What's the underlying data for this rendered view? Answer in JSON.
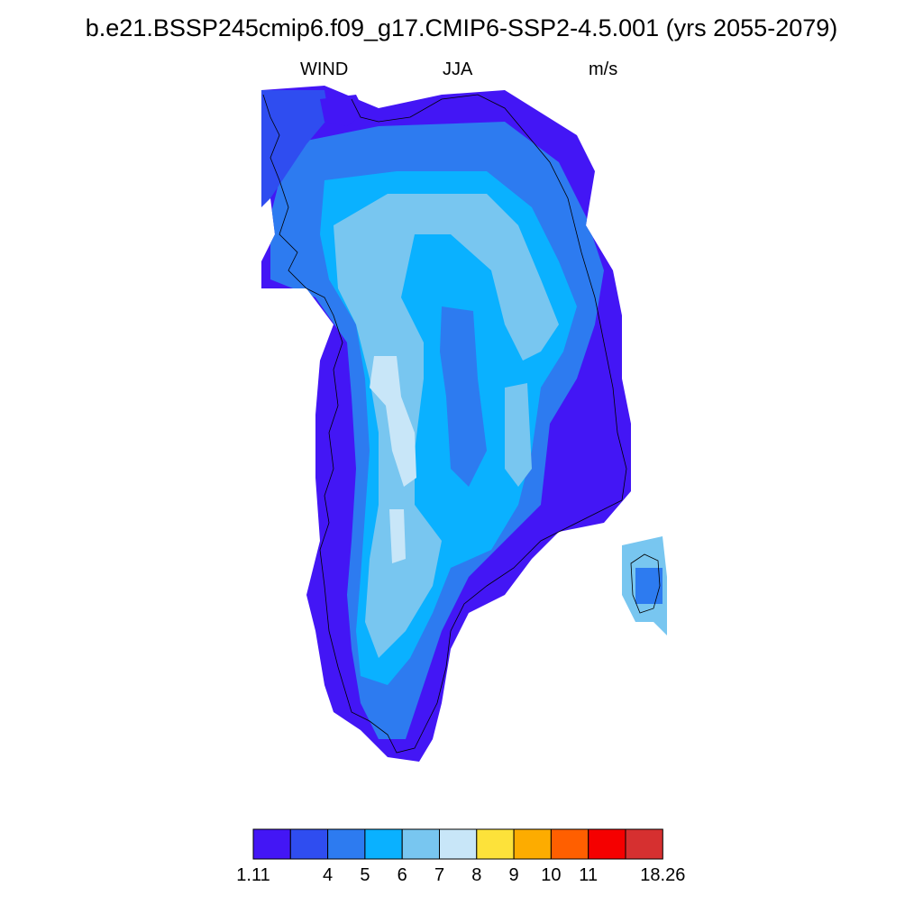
{
  "title": "b.e21.BSSP245cmip6.f09_g17.CMIP6-SSP2-4.5.001 (yrs 2055-2079)",
  "subtitle_left": "WIND",
  "subtitle_center": "JJA",
  "subtitle_right": "m/s",
  "colorbar": {
    "colors": [
      "#4316f5",
      "#2f4df0",
      "#2d7bf0",
      "#0ab1ff",
      "#78c6f0",
      "#c8e6f8",
      "#fde23a",
      "#fdac00",
      "#ff5f00",
      "#f50000",
      "#d63030"
    ],
    "labels": [
      "1.11",
      "4",
      "5",
      "6",
      "7",
      "8",
      "9",
      "10",
      "11",
      "18.26"
    ]
  }
}
